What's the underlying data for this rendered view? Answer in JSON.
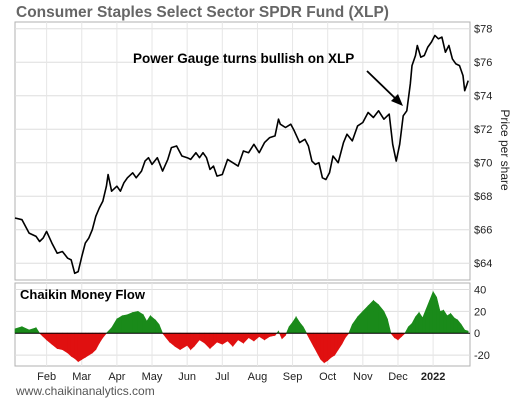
{
  "chart_data": [
    {
      "type": "line",
      "title": "Consumer Staples Select Sector SPDR Fund (XLP)",
      "ylabel": "Price per share",
      "ylim": [
        63,
        78.4
      ],
      "y_ticks": [
        64,
        66,
        68,
        70,
        72,
        74,
        76,
        78
      ],
      "y_tick_labels": [
        "$64",
        "$66",
        "$68",
        "$70",
        "$72",
        "$74",
        "$76",
        "$78"
      ],
      "x_labels": [
        "Feb",
        "Mar",
        "Apr",
        "May",
        "Jun",
        "Jul",
        "Aug",
        "Sep",
        "Oct",
        "Nov",
        "Dec",
        "2022"
      ],
      "x_label_positions": [
        1.0,
        2.0,
        3.0,
        4.0,
        5.0,
        6.0,
        7.0,
        8.0,
        9.0,
        10.0,
        11.0,
        12.0
      ],
      "x_range": [
        0.1,
        13.05
      ],
      "annotation": "Power Gauge turns bullish on XLP",
      "series": [
        {
          "values": [
            [
              0.1,
              66.7
            ],
            [
              0.3,
              66.6
            ],
            [
              0.5,
              65.8
            ],
            [
              0.7,
              65.6
            ],
            [
              0.8,
              65.3
            ],
            [
              0.9,
              65.5
            ],
            [
              1.0,
              65.9
            ],
            [
              1.15,
              65.2
            ],
            [
              1.3,
              64.6
            ],
            [
              1.45,
              64.7
            ],
            [
              1.6,
              64.3
            ],
            [
              1.7,
              64.2
            ],
            [
              1.8,
              63.4
            ],
            [
              1.9,
              63.5
            ],
            [
              2.0,
              64.4
            ],
            [
              2.1,
              65.2
            ],
            [
              2.2,
              65.5
            ],
            [
              2.3,
              66.0
            ],
            [
              2.4,
              66.8
            ],
            [
              2.5,
              67.3
            ],
            [
              2.6,
              67.7
            ],
            [
              2.7,
              68.6
            ],
            [
              2.75,
              69.3
            ],
            [
              2.85,
              68.3
            ],
            [
              3.0,
              68.6
            ],
            [
              3.1,
              68.3
            ],
            [
              3.2,
              68.8
            ],
            [
              3.3,
              69.1
            ],
            [
              3.45,
              69.4
            ],
            [
              3.55,
              69.1
            ],
            [
              3.7,
              69.5
            ],
            [
              3.8,
              70.1
            ],
            [
              3.9,
              70.3
            ],
            [
              4.0,
              69.9
            ],
            [
              4.15,
              70.3
            ],
            [
              4.3,
              69.5
            ],
            [
              4.45,
              70.2
            ],
            [
              4.55,
              70.9
            ],
            [
              4.7,
              71.0
            ],
            [
              4.85,
              70.4
            ],
            [
              5.0,
              70.3
            ],
            [
              5.1,
              70.2
            ],
            [
              5.25,
              70.6
            ],
            [
              5.35,
              70.3
            ],
            [
              5.45,
              70.6
            ],
            [
              5.55,
              70.3
            ],
            [
              5.65,
              69.6
            ],
            [
              5.75,
              69.8
            ],
            [
              5.85,
              69.2
            ],
            [
              6.0,
              69.3
            ],
            [
              6.15,
              70.2
            ],
            [
              6.3,
              70.0
            ],
            [
              6.45,
              69.8
            ],
            [
              6.6,
              70.7
            ],
            [
              6.75,
              70.6
            ],
            [
              6.9,
              71.1
            ],
            [
              7.05,
              70.6
            ],
            [
              7.2,
              71.2
            ],
            [
              7.35,
              71.5
            ],
            [
              7.5,
              71.6
            ],
            [
              7.6,
              72.6
            ],
            [
              7.65,
              72.3
            ],
            [
              7.8,
              72.1
            ],
            [
              7.95,
              72.3
            ],
            [
              8.05,
              71.9
            ],
            [
              8.2,
              71.2
            ],
            [
              8.35,
              71.4
            ],
            [
              8.45,
              71.0
            ],
            [
              8.55,
              70.1
            ],
            [
              8.65,
              69.9
            ],
            [
              8.75,
              70.0
            ],
            [
              8.85,
              69.1
            ],
            [
              8.95,
              69.0
            ],
            [
              9.05,
              69.4
            ],
            [
              9.15,
              70.4
            ],
            [
              9.3,
              70.0
            ],
            [
              9.45,
              71.2
            ],
            [
              9.55,
              71.7
            ],
            [
              9.7,
              71.3
            ],
            [
              9.85,
              72.2
            ],
            [
              10.0,
              72.4
            ],
            [
              10.15,
              73.0
            ],
            [
              10.3,
              72.7
            ],
            [
              10.45,
              73.1
            ],
            [
              10.6,
              72.6
            ],
            [
              10.75,
              72.9
            ],
            [
              10.85,
              71.1
            ],
            [
              10.95,
              70.1
            ],
            [
              11.05,
              71.1
            ],
            [
              11.15,
              72.8
            ],
            [
              11.25,
              73.1
            ],
            [
              11.35,
              74.7
            ],
            [
              11.4,
              75.8
            ],
            [
              11.5,
              76.4
            ],
            [
              11.55,
              77.0
            ],
            [
              11.65,
              76.3
            ],
            [
              11.75,
              76.4
            ],
            [
              11.85,
              76.9
            ],
            [
              11.95,
              77.2
            ],
            [
              12.05,
              77.6
            ],
            [
              12.15,
              77.4
            ],
            [
              12.25,
              77.5
            ],
            [
              12.35,
              76.6
            ],
            [
              12.45,
              77.0
            ],
            [
              12.55,
              76.2
            ],
            [
              12.65,
              75.9
            ],
            [
              12.75,
              75.8
            ],
            [
              12.85,
              75.2
            ],
            [
              12.9,
              74.3
            ],
            [
              12.95,
              74.6
            ],
            [
              13.0,
              74.9
            ]
          ]
        }
      ],
      "grid": true,
      "line_color": "#000000"
    },
    {
      "type": "area",
      "title": "Chaikin Money Flow",
      "ylim": [
        -30,
        46
      ],
      "y_ticks": [
        -20,
        0,
        20,
        40
      ],
      "y_tick_labels": [
        "-20",
        "0",
        "20",
        "40"
      ],
      "positive_color": "#1a8a1a",
      "negative_color": "#e01010",
      "grid": true,
      "series": [
        {
          "values": [
            [
              0.1,
              4
            ],
            [
              0.3,
              6
            ],
            [
              0.5,
              3
            ],
            [
              0.7,
              5
            ],
            [
              0.8,
              0
            ],
            [
              0.9,
              -3
            ],
            [
              1.0,
              -6
            ],
            [
              1.15,
              -10
            ],
            [
              1.3,
              -14
            ],
            [
              1.45,
              -15
            ],
            [
              1.6,
              -18
            ],
            [
              1.7,
              -21
            ],
            [
              1.8,
              -23
            ],
            [
              1.9,
              -26
            ],
            [
              2.0,
              -24
            ],
            [
              2.1,
              -22
            ],
            [
              2.2,
              -20
            ],
            [
              2.3,
              -18
            ],
            [
              2.4,
              -15
            ],
            [
              2.5,
              -9
            ],
            [
              2.6,
              -4
            ],
            [
              2.7,
              0
            ],
            [
              2.85,
              5
            ],
            [
              3.0,
              13
            ],
            [
              3.15,
              16
            ],
            [
              3.3,
              17
            ],
            [
              3.45,
              19
            ],
            [
              3.6,
              20
            ],
            [
              3.75,
              17
            ],
            [
              3.85,
              11
            ],
            [
              3.95,
              16
            ],
            [
              4.1,
              12
            ],
            [
              4.2,
              8
            ],
            [
              4.3,
              0
            ],
            [
              4.4,
              -4
            ],
            [
              4.5,
              -8
            ],
            [
              4.65,
              -12
            ],
            [
              4.8,
              -15
            ],
            [
              5.0,
              -11
            ],
            [
              5.1,
              -15
            ],
            [
              5.2,
              -12
            ],
            [
              5.35,
              -6
            ],
            [
              5.5,
              -9
            ],
            [
              5.65,
              -14
            ],
            [
              5.75,
              -11
            ],
            [
              5.85,
              -8
            ],
            [
              6.0,
              -10
            ],
            [
              6.15,
              -7
            ],
            [
              6.3,
              -12
            ],
            [
              6.45,
              -6
            ],
            [
              6.6,
              -9
            ],
            [
              6.75,
              -4
            ],
            [
              6.9,
              -7
            ],
            [
              7.05,
              -3
            ],
            [
              7.2,
              -6
            ],
            [
              7.35,
              -3
            ],
            [
              7.5,
              -2
            ],
            [
              7.6,
              2
            ],
            [
              7.7,
              -5
            ],
            [
              7.8,
              -2
            ],
            [
              7.9,
              6
            ],
            [
              8.0,
              10
            ],
            [
              8.1,
              15
            ],
            [
              8.2,
              10
            ],
            [
              8.3,
              6
            ],
            [
              8.4,
              0
            ],
            [
              8.5,
              -6
            ],
            [
              8.6,
              -12
            ],
            [
              8.7,
              -18
            ],
            [
              8.8,
              -24
            ],
            [
              8.9,
              -27
            ],
            [
              9.0,
              -25
            ],
            [
              9.1,
              -22
            ],
            [
              9.2,
              -20
            ],
            [
              9.3,
              -15
            ],
            [
              9.4,
              -10
            ],
            [
              9.5,
              -4
            ],
            [
              9.6,
              0
            ],
            [
              9.7,
              8
            ],
            [
              9.85,
              15
            ],
            [
              10.0,
              20
            ],
            [
              10.15,
              25
            ],
            [
              10.3,
              30
            ],
            [
              10.45,
              26
            ],
            [
              10.6,
              20
            ],
            [
              10.7,
              13
            ],
            [
              10.8,
              0
            ],
            [
              10.9,
              -4
            ],
            [
              11.0,
              -6
            ],
            [
              11.1,
              -3
            ],
            [
              11.2,
              0
            ],
            [
              11.3,
              6
            ],
            [
              11.4,
              9
            ],
            [
              11.5,
              15
            ],
            [
              11.6,
              19
            ],
            [
              11.7,
              14
            ],
            [
              11.8,
              22
            ],
            [
              11.9,
              30
            ],
            [
              12.0,
              38
            ],
            [
              12.1,
              33
            ],
            [
              12.2,
              20
            ],
            [
              12.3,
              21
            ],
            [
              12.4,
              16
            ],
            [
              12.5,
              18
            ],
            [
              12.6,
              14
            ],
            [
              12.7,
              12
            ],
            [
              12.8,
              8
            ],
            [
              12.9,
              3
            ],
            [
              13.0,
              2
            ]
          ]
        }
      ]
    }
  ],
  "footer": {
    "source": "www.chaikinanalytics.com"
  }
}
